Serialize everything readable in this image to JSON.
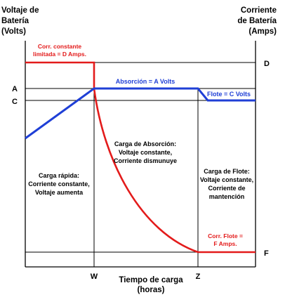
{
  "left_axis_title": [
    "Voltaje de",
    "Batería",
    "(Volts)"
  ],
  "right_axis_title": [
    "Corriente",
    "de Batería",
    "(Amps)"
  ],
  "left_ticks": {
    "a": "A",
    "c": "C"
  },
  "right_ticks": {
    "d": "D",
    "f": "F"
  },
  "x_ticks": {
    "w": "W",
    "z": "Z"
  },
  "x_axis_title": [
    "Tiempo de carga",
    "(horas)"
  ],
  "labels": {
    "current_limited": [
      "Corr. constante",
      "limitada = D Amps."
    ],
    "absorption_volts": "Absorción = A Volts",
    "float_volts": "Flote = C Volts",
    "float_current": [
      "Corr. Flote =",
      "F Amps."
    ]
  },
  "phases": {
    "bulk": [
      "Carga rápida:",
      "Corriente constante,",
      "Voltaje aumenta"
    ],
    "absorption": [
      "Carga de Absorción:",
      "Voltaje constante,",
      "Corriente dismunuye"
    ],
    "float": [
      "Carga de Flote:",
      "Voltaje constante,",
      "Corriente de",
      "mantención"
    ]
  },
  "colors": {
    "voltage": "#1f3fd6",
    "current": "#e31b1b",
    "axes": "#000000"
  }
}
